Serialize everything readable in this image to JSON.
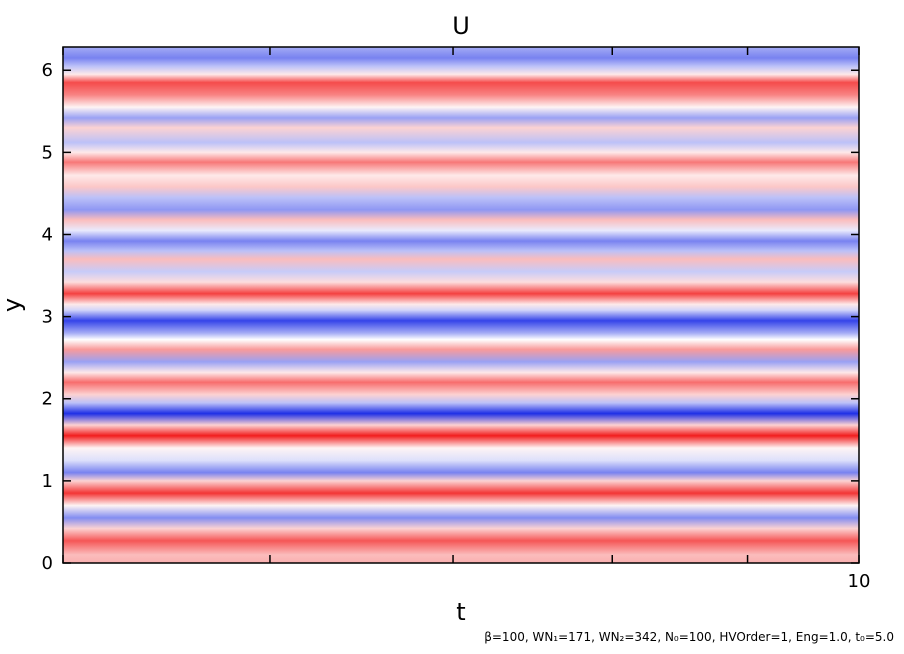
{
  "chart_data": {
    "type": "heatmap",
    "title": "U",
    "xlabel": "t",
    "ylabel": "y",
    "xlim": [
      0,
      10
    ],
    "ylim": [
      0,
      6.283
    ],
    "x_ticks": [
      0,
      2.6,
      4.9,
      6.9,
      8.6,
      10
    ],
    "x_tick_labels": [
      "10"
    ],
    "y_ticks": [
      0,
      1,
      2,
      3,
      4,
      5,
      6
    ],
    "colormap": {
      "negative": "#1e2fe6",
      "zero": "#ffffff",
      "positive": "#f21e1e"
    },
    "bands": [
      {
        "y": 0.0,
        "u": 0.35
      },
      {
        "y": 0.1,
        "u": 0.3
      },
      {
        "y": 0.27,
        "u": 0.75
      },
      {
        "y": 0.42,
        "u": 0.2
      },
      {
        "y": 0.55,
        "u": -0.55
      },
      {
        "y": 0.7,
        "u": 0.05
      },
      {
        "y": 0.85,
        "u": 0.9
      },
      {
        "y": 1.0,
        "u": 0.2
      },
      {
        "y": 1.1,
        "u": -0.6
      },
      {
        "y": 1.25,
        "u": -0.15
      },
      {
        "y": 1.4,
        "u": 0.05
      },
      {
        "y": 1.55,
        "u": 1.0
      },
      {
        "y": 1.68,
        "u": 0.2
      },
      {
        "y": 1.82,
        "u": -1.0
      },
      {
        "y": 1.95,
        "u": -0.3
      },
      {
        "y": 2.05,
        "u": 0.2
      },
      {
        "y": 2.2,
        "u": 0.65
      },
      {
        "y": 2.32,
        "u": 0.1
      },
      {
        "y": 2.45,
        "u": -0.45
      },
      {
        "y": 2.6,
        "u": 0.45
      },
      {
        "y": 2.72,
        "u": 0.0
      },
      {
        "y": 2.8,
        "u": -0.4
      },
      {
        "y": 2.95,
        "u": -0.9
      },
      {
        "y": 3.08,
        "u": -0.2
      },
      {
        "y": 3.15,
        "u": 0.1
      },
      {
        "y": 3.28,
        "u": 0.85
      },
      {
        "y": 3.42,
        "u": 0.15
      },
      {
        "y": 3.55,
        "u": -0.25
      },
      {
        "y": 3.7,
        "u": 0.3
      },
      {
        "y": 3.8,
        "u": -0.3
      },
      {
        "y": 3.92,
        "u": -0.6
      },
      {
        "y": 4.05,
        "u": -0.1
      },
      {
        "y": 4.18,
        "u": 0.3
      },
      {
        "y": 4.3,
        "u": -0.5
      },
      {
        "y": 4.45,
        "u": -0.3
      },
      {
        "y": 4.58,
        "u": 0.25
      },
      {
        "y": 4.72,
        "u": 0.1
      },
      {
        "y": 4.88,
        "u": 0.6
      },
      {
        "y": 5.0,
        "u": 0.1
      },
      {
        "y": 5.12,
        "u": -0.3
      },
      {
        "y": 5.3,
        "u": 0.2
      },
      {
        "y": 5.42,
        "u": -0.45
      },
      {
        "y": 5.55,
        "u": 0.05
      },
      {
        "y": 5.7,
        "u": 0.55
      },
      {
        "y": 5.85,
        "u": 0.8
      },
      {
        "y": 5.95,
        "u": 0.1
      },
      {
        "y": 6.05,
        "u": -0.3
      },
      {
        "y": 6.15,
        "u": -0.6
      },
      {
        "y": 6.283,
        "u": -0.4
      }
    ],
    "annotation": "β=100, WN₁=171, WN₂=342, N₀=100, HVOrder=1, Eng=1.0, t₀=5.0"
  }
}
